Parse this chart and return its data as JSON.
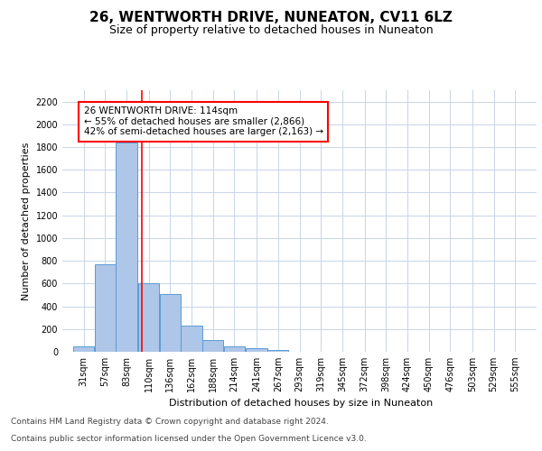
{
  "title1": "26, WENTWORTH DRIVE, NUNEATON, CV11 6LZ",
  "title2": "Size of property relative to detached houses in Nuneaton",
  "xlabel": "Distribution of detached houses by size in Nuneaton",
  "ylabel": "Number of detached properties",
  "footnote1": "Contains HM Land Registry data © Crown copyright and database right 2024.",
  "footnote2": "Contains public sector information licensed under the Open Government Licence v3.0.",
  "annotation_line1": "26 WENTWORTH DRIVE: 114sqm",
  "annotation_line2": "← 55% of detached houses are smaller (2,866)",
  "annotation_line3": "42% of semi-detached houses are larger (2,163) →",
  "bar_color": "#aec6e8",
  "bar_edge_color": "#5b9bd5",
  "redline_x": 114,
  "categories": [
    "31sqm",
    "57sqm",
    "83sqm",
    "110sqm",
    "136sqm",
    "162sqm",
    "188sqm",
    "214sqm",
    "241sqm",
    "267sqm",
    "293sqm",
    "319sqm",
    "345sqm",
    "372sqm",
    "398sqm",
    "424sqm",
    "450sqm",
    "476sqm",
    "503sqm",
    "529sqm",
    "555sqm"
  ],
  "bin_edges": [
    31,
    57,
    83,
    110,
    136,
    162,
    188,
    214,
    241,
    267,
    293,
    319,
    345,
    372,
    398,
    424,
    450,
    476,
    503,
    529,
    555
  ],
  "values": [
    50,
    770,
    1840,
    600,
    510,
    230,
    100,
    50,
    30,
    18,
    0,
    0,
    0,
    0,
    0,
    0,
    0,
    0,
    0,
    0
  ],
  "ylim": [
    0,
    2300
  ],
  "yticks": [
    0,
    200,
    400,
    600,
    800,
    1000,
    1200,
    1400,
    1600,
    1800,
    2000,
    2200
  ],
  "title1_fontsize": 11,
  "title2_fontsize": 9,
  "xlabel_fontsize": 8,
  "ylabel_fontsize": 8,
  "tick_fontsize": 7,
  "footnote_fontsize": 6.5,
  "annotation_fontsize": 7.5,
  "background_color": "#ffffff",
  "grid_color": "#c8d4e8"
}
